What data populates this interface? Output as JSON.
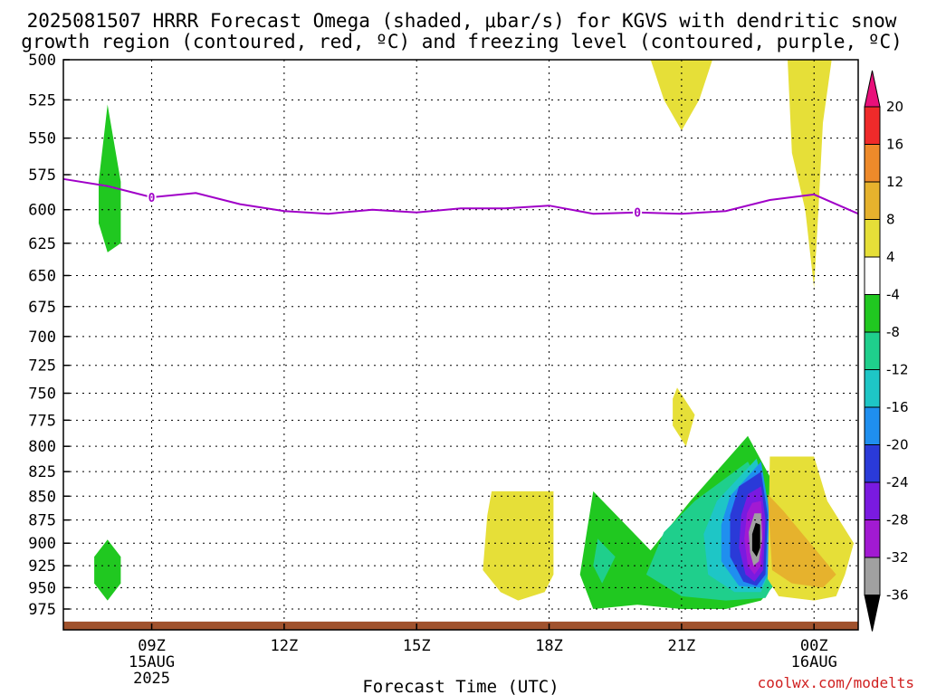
{
  "chart_data": {
    "type": "heatmap",
    "title_lines": [
      "2025081507 HRRR Forecast Omega (shaded, μbar/s) for KGVS with dendritic snow",
      "growth region (contoured, red, ºC) and freezing level (contoured, purple, ºC)"
    ],
    "xlabel": "Forecast Time (UTC)",
    "credit": "coolwx.com/modelts",
    "y_axis": {
      "type": "log",
      "inverted": true,
      "range": [
        500,
        1000
      ],
      "ticks": [
        500,
        525,
        550,
        575,
        600,
        625,
        650,
        675,
        700,
        725,
        750,
        775,
        800,
        825,
        850,
        875,
        900,
        925,
        950,
        975
      ]
    },
    "x_axis": {
      "range": [
        7,
        25
      ],
      "ticks": [
        {
          "x": 9,
          "lines": [
            "09Z",
            "15AUG",
            "2025"
          ]
        },
        {
          "x": 12,
          "lines": [
            "12Z"
          ]
        },
        {
          "x": 15,
          "lines": [
            "15Z"
          ]
        },
        {
          "x": 18,
          "lines": [
            "18Z"
          ]
        },
        {
          "x": 21,
          "lines": [
            "21Z"
          ]
        },
        {
          "x": 24,
          "lines": [
            "00Z",
            "16AUG"
          ]
        }
      ]
    },
    "grid": true,
    "colorbar": {
      "ticks": [
        20,
        16,
        12,
        8,
        4,
        -4,
        -8,
        -12,
        -16,
        -20,
        -24,
        -28,
        -32,
        -36
      ],
      "colors": [
        "#e8107a",
        "#ef2a2a",
        "#ee8a2a",
        "#e6b22d",
        "#e6df38",
        "#ffffff",
        "#20c820",
        "#1fcf8c",
        "#1ec6c6",
        "#1f8fef",
        "#2a3ad8",
        "#7a1ae0",
        "#a21ad2",
        "#a0a0a0",
        "#000000"
      ]
    },
    "freezing_level": {
      "color": "#a000c8",
      "x": [
        7,
        8,
        9,
        10,
        11,
        12,
        13,
        14,
        15,
        16,
        17,
        18,
        19,
        20,
        21,
        22,
        23,
        24,
        25
      ],
      "p": [
        578,
        583,
        591,
        588,
        596,
        601,
        603,
        600,
        602,
        599,
        599,
        597,
        603,
        602,
        603,
        601,
        593,
        589,
        603
      ],
      "labels": [
        {
          "x": 9,
          "p": 591,
          "text": "0"
        },
        {
          "x": 20,
          "p": 602,
          "text": "0"
        }
      ]
    },
    "omega_regions": [
      {
        "value": 6,
        "color": "#e6df38",
        "points": [
          [
            20.3,
            500
          ],
          [
            21.7,
            500
          ],
          [
            21.4,
            525
          ],
          [
            21,
            545
          ],
          [
            20.6,
            525
          ]
        ]
      },
      {
        "value": 6,
        "color": "#e6df38",
        "points": [
          [
            23.4,
            500
          ],
          [
            24.4,
            500
          ],
          [
            24.2,
            540
          ],
          [
            24.1,
            600
          ],
          [
            24,
            660
          ],
          [
            23.8,
            600
          ],
          [
            23.5,
            560
          ]
        ]
      },
      {
        "value": -6,
        "color": "#20c820",
        "points": [
          [
            8,
            528
          ],
          [
            8.3,
            580
          ],
          [
            8.3,
            625
          ],
          [
            8,
            632
          ],
          [
            7.8,
            610
          ],
          [
            7.8,
            580
          ]
        ]
      },
      {
        "value": -6,
        "color": "#20c820",
        "points": [
          [
            8,
            896
          ],
          [
            8.3,
            915
          ],
          [
            8.3,
            945
          ],
          [
            8,
            965
          ],
          [
            7.7,
            945
          ],
          [
            7.7,
            915
          ]
        ]
      },
      {
        "value": 6,
        "color": "#e6df38",
        "points": [
          [
            20.9,
            745
          ],
          [
            21.3,
            770
          ],
          [
            21.1,
            800
          ],
          [
            20.8,
            780
          ],
          [
            20.8,
            755
          ]
        ]
      },
      {
        "value": 6,
        "color": "#e6df38",
        "points": [
          [
            16.7,
            845
          ],
          [
            18.1,
            845
          ],
          [
            18.1,
            935
          ],
          [
            17.9,
            955
          ],
          [
            17.3,
            965
          ],
          [
            16.9,
            955
          ],
          [
            16.5,
            930
          ],
          [
            16.6,
            870
          ]
        ]
      },
      {
        "value": -6,
        "color": "#20c820",
        "points": [
          [
            19,
            845
          ],
          [
            20.3,
            908
          ],
          [
            21.2,
            855
          ],
          [
            22.5,
            790
          ],
          [
            23.3,
            855
          ],
          [
            23.3,
            935
          ],
          [
            22.8,
            965
          ],
          [
            22,
            975
          ],
          [
            21,
            975
          ],
          [
            20,
            970
          ],
          [
            19,
            975
          ],
          [
            18.7,
            935
          ]
        ]
      },
      {
        "value": -10,
        "color": "#1fcf8c",
        "points": [
          [
            21.3,
            855
          ],
          [
            22.5,
            815
          ],
          [
            23.1,
            865
          ],
          [
            23.2,
            935
          ],
          [
            22.9,
            962
          ],
          [
            22,
            965
          ],
          [
            21,
            960
          ],
          [
            20.2,
            935
          ],
          [
            20.6,
            888
          ]
        ]
      },
      {
        "value": -10,
        "color": "#1fcf8c",
        "points": [
          [
            19.1,
            895
          ],
          [
            19.5,
            915
          ],
          [
            19.2,
            945
          ],
          [
            19,
            925
          ]
        ]
      },
      {
        "value": -14,
        "color": "#1ec6c6",
        "points": [
          [
            21.8,
            855
          ],
          [
            22.7,
            812
          ],
          [
            23,
            870
          ],
          [
            23,
            930
          ],
          [
            22.8,
            955
          ],
          [
            22.2,
            955
          ],
          [
            21.6,
            935
          ],
          [
            21.5,
            890
          ]
        ]
      },
      {
        "value": -18,
        "color": "#1f8fef",
        "points": [
          [
            22.1,
            850
          ],
          [
            22.8,
            815
          ],
          [
            23,
            870
          ],
          [
            23,
            930
          ],
          [
            22.8,
            950
          ],
          [
            22.3,
            948
          ],
          [
            21.9,
            920
          ],
          [
            21.9,
            880
          ]
        ]
      },
      {
        "value": -22,
        "color": "#2a3ad8",
        "points": [
          [
            22.3,
            840
          ],
          [
            22.8,
            825
          ],
          [
            22.95,
            870
          ],
          [
            22.9,
            935
          ],
          [
            22.7,
            948
          ],
          [
            22.4,
            943
          ],
          [
            22.1,
            915
          ],
          [
            22.1,
            870
          ]
        ]
      },
      {
        "value": -26,
        "color": "#7a1ae0",
        "points": [
          [
            22.5,
            848
          ],
          [
            22.8,
            840
          ],
          [
            22.9,
            875
          ],
          [
            22.85,
            930
          ],
          [
            22.65,
            943
          ],
          [
            22.45,
            935
          ],
          [
            22.3,
            905
          ],
          [
            22.35,
            870
          ]
        ]
      },
      {
        "value": -30,
        "color": "#a21ad2",
        "points": [
          [
            22.6,
            857
          ],
          [
            22.8,
            855
          ],
          [
            22.85,
            885
          ],
          [
            22.8,
            925
          ],
          [
            22.65,
            935
          ],
          [
            22.5,
            925
          ],
          [
            22.42,
            895
          ],
          [
            22.48,
            868
          ]
        ]
      },
      {
        "value": -34,
        "color": "#a0a0a0",
        "points": [
          [
            22.65,
            868
          ],
          [
            22.8,
            868
          ],
          [
            22.82,
            895
          ],
          [
            22.75,
            920
          ],
          [
            22.63,
            925
          ],
          [
            22.55,
            910
          ],
          [
            22.52,
            888
          ]
        ]
      },
      {
        "value": -38,
        "color": "#000000",
        "points": [
          [
            22.68,
            878
          ],
          [
            22.78,
            880
          ],
          [
            22.78,
            905
          ],
          [
            22.7,
            915
          ],
          [
            22.6,
            908
          ],
          [
            22.6,
            890
          ]
        ]
      },
      {
        "value": 6,
        "color": "#e6df38",
        "points": [
          [
            23,
            810
          ],
          [
            24,
            810
          ],
          [
            24.3,
            855
          ],
          [
            24.9,
            900
          ],
          [
            24.7,
            935
          ],
          [
            24.5,
            960
          ],
          [
            24,
            965
          ],
          [
            23.2,
            960
          ],
          [
            22.95,
            940
          ]
        ]
      },
      {
        "value": 10,
        "color": "#e6b22d",
        "points": [
          [
            22.95,
            848
          ],
          [
            23.3,
            865
          ],
          [
            24,
            905
          ],
          [
            24.5,
            935
          ],
          [
            24.2,
            950
          ],
          [
            23.5,
            945
          ],
          [
            23.05,
            930
          ]
        ]
      }
    ],
    "ground": {
      "color": "#a0522d",
      "p": 990
    }
  }
}
